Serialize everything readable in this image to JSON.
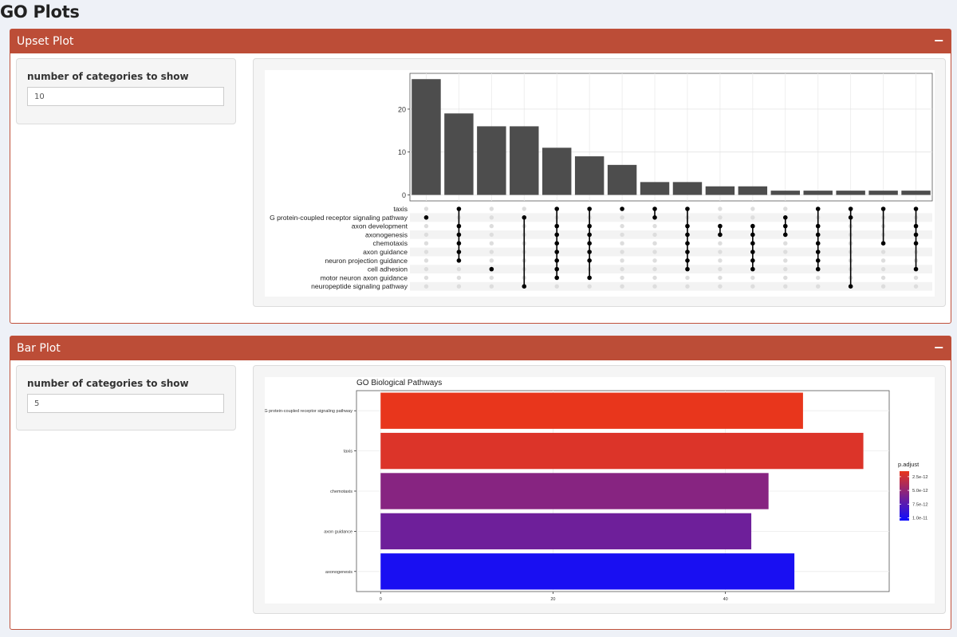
{
  "page": {
    "title": "GO Plots"
  },
  "upset_box": {
    "title": "Upset Plot",
    "collapse_icon": "minus-icon",
    "collapse_symbol": "−"
  },
  "upset_control": {
    "label": "number of categories to show",
    "value": "10"
  },
  "bar_box": {
    "title": "Bar Plot",
    "collapse_icon": "minus-icon",
    "collapse_symbol": "−"
  },
  "bar_control": {
    "label": "number of categories to show",
    "value": "5"
  },
  "chart_data": [
    {
      "type": "bar",
      "subtype": "upset",
      "title": "",
      "y_ticks": [
        0,
        10,
        20
      ],
      "ylim": [
        0,
        28
      ],
      "sets": [
        "taxis",
        "G protein-coupled receptor signaling pathway",
        "axon development",
        "axonogenesis",
        "chemotaxis",
        "axon guidance",
        "neuron projection guidance",
        "cell adhesion",
        "motor neuron axon guidance",
        "neuropeptide signaling pathway"
      ],
      "intersections": [
        {
          "value": 27,
          "members": [
            1
          ]
        },
        {
          "value": 19,
          "members": [
            0,
            2,
            3,
            4,
            5,
            6
          ]
        },
        {
          "value": 16,
          "members": [
            7
          ]
        },
        {
          "value": 16,
          "members": [
            1,
            9
          ]
        },
        {
          "value": 11,
          "members": [
            0,
            2,
            3,
            4,
            5,
            6,
            7,
            8
          ]
        },
        {
          "value": 9,
          "members": [
            0,
            2,
            3,
            4,
            5,
            6,
            8
          ]
        },
        {
          "value": 7,
          "members": [
            0
          ]
        },
        {
          "value": 3,
          "members": [
            0,
            1
          ]
        },
        {
          "value": 3,
          "members": [
            0,
            2,
            3,
            4,
            5,
            6,
            7
          ]
        },
        {
          "value": 2,
          "members": [
            2,
            3
          ]
        },
        {
          "value": 2,
          "members": [
            2,
            3,
            4,
            5,
            6,
            7
          ]
        },
        {
          "value": 1,
          "members": [
            1,
            2,
            3
          ]
        },
        {
          "value": 1,
          "members": [
            0,
            2,
            3,
            4,
            5,
            6,
            7
          ]
        },
        {
          "value": 1,
          "members": [
            0,
            1,
            9
          ]
        },
        {
          "value": 1,
          "members": [
            0,
            4
          ]
        },
        {
          "value": 1,
          "members": [
            0,
            2,
            3,
            4,
            7
          ]
        }
      ],
      "colors": {
        "bar": "#4d4d4d",
        "dot_active": "#000000",
        "dot_inactive": "#dddddd"
      }
    },
    {
      "type": "bar",
      "orientation": "horizontal",
      "title": "GO Biological Pathways",
      "categories": [
        "G protein-coupled receptor signaling pathway",
        "taxis",
        "chemotaxis",
        "axon guidance",
        "axonogenesis"
      ],
      "values": [
        49,
        56,
        45,
        43,
        48
      ],
      "p_adjust": [
        1.5e-12,
        2e-12,
        5.5e-12,
        6.5e-12,
        1e-11
      ],
      "x_ticks": [
        0,
        20,
        40
      ],
      "xlim": [
        -2.8,
        59
      ],
      "legend": {
        "title": "p.adjust",
        "labels": [
          "2.5e-12",
          "5.0e-12",
          "7.5e-12",
          "1.0e-11"
        ],
        "values": [
          2.5e-12,
          5e-12,
          7.5e-12,
          1e-11
        ],
        "range": [
          1.5e-12,
          1.05e-11
        ],
        "color_low": "#e8361c",
        "color_high": "#0d0dff",
        "placement": "right"
      }
    }
  ]
}
